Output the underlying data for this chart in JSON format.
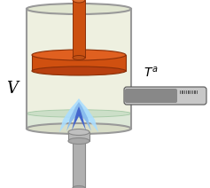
{
  "bg_color": "#ffffff",
  "cylinder_fill": "#eef0e0",
  "cylinder_edge": "#999999",
  "cylinder_fill2": "#e8ead8",
  "piston_color": "#d05010",
  "piston_top_color": "#e06020",
  "piston_bot_color": "#b84010",
  "piston_rod_color": "#cc5010",
  "gas_color": "#e8edd8",
  "water_color": "#ddeedd",
  "flame_outer": "#aaddff",
  "flame_mid": "#88bbee",
  "flame_core": "#5566dd",
  "flame_inner": "#3344cc",
  "burner_color": "#b0b0b0",
  "burner_dark": "#909090",
  "thermometer_body": "#888888",
  "thermometer_fill": "#aaaaaa",
  "thermometer_tip": "#999999",
  "label_V": "V",
  "label_Ta": "$T^a$"
}
